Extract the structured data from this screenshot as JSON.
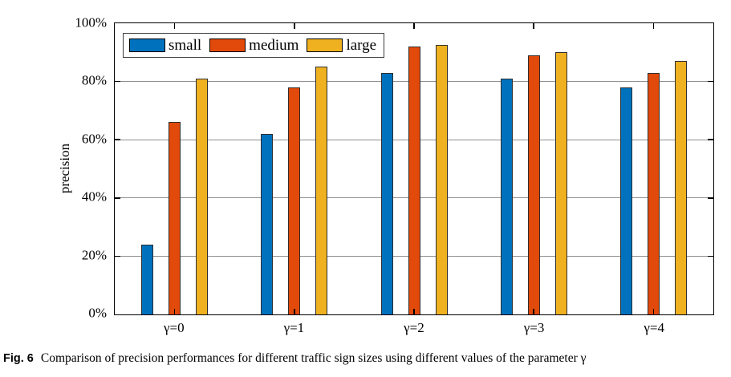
{
  "figure": {
    "caption_label": "Fig. 6",
    "caption_text": "Comparison of precision performances for different traffic sign sizes using different values of the parameter γ"
  },
  "chart_data": {
    "type": "bar",
    "title": "",
    "xlabel": "",
    "ylabel": "precision",
    "categories": [
      "γ=0",
      "γ=1",
      "γ=2",
      "γ=3",
      "γ=4"
    ],
    "series": [
      {
        "name": "small",
        "color": "#0072BD",
        "values": [
          24,
          62,
          83,
          81,
          78
        ]
      },
      {
        "name": "medium",
        "color": "#E24A0C",
        "values": [
          66,
          78,
          92,
          89,
          83
        ]
      },
      {
        "name": "large",
        "color": "#EFB120",
        "values": [
          81,
          85,
          92.5,
          90,
          87
        ]
      }
    ],
    "ylim": [
      0,
      100
    ],
    "yticks": [
      0,
      20,
      40,
      60,
      80,
      100
    ],
    "ytick_labels": [
      "0%",
      "20%",
      "40%",
      "60%",
      "80%",
      "100%"
    ],
    "grid": "horizontal",
    "legend_position": "top-left-inside",
    "gridline_color": "#8f8f8f",
    "axis_color": "#000000",
    "bar_edge_color": "#2e2e2e"
  }
}
